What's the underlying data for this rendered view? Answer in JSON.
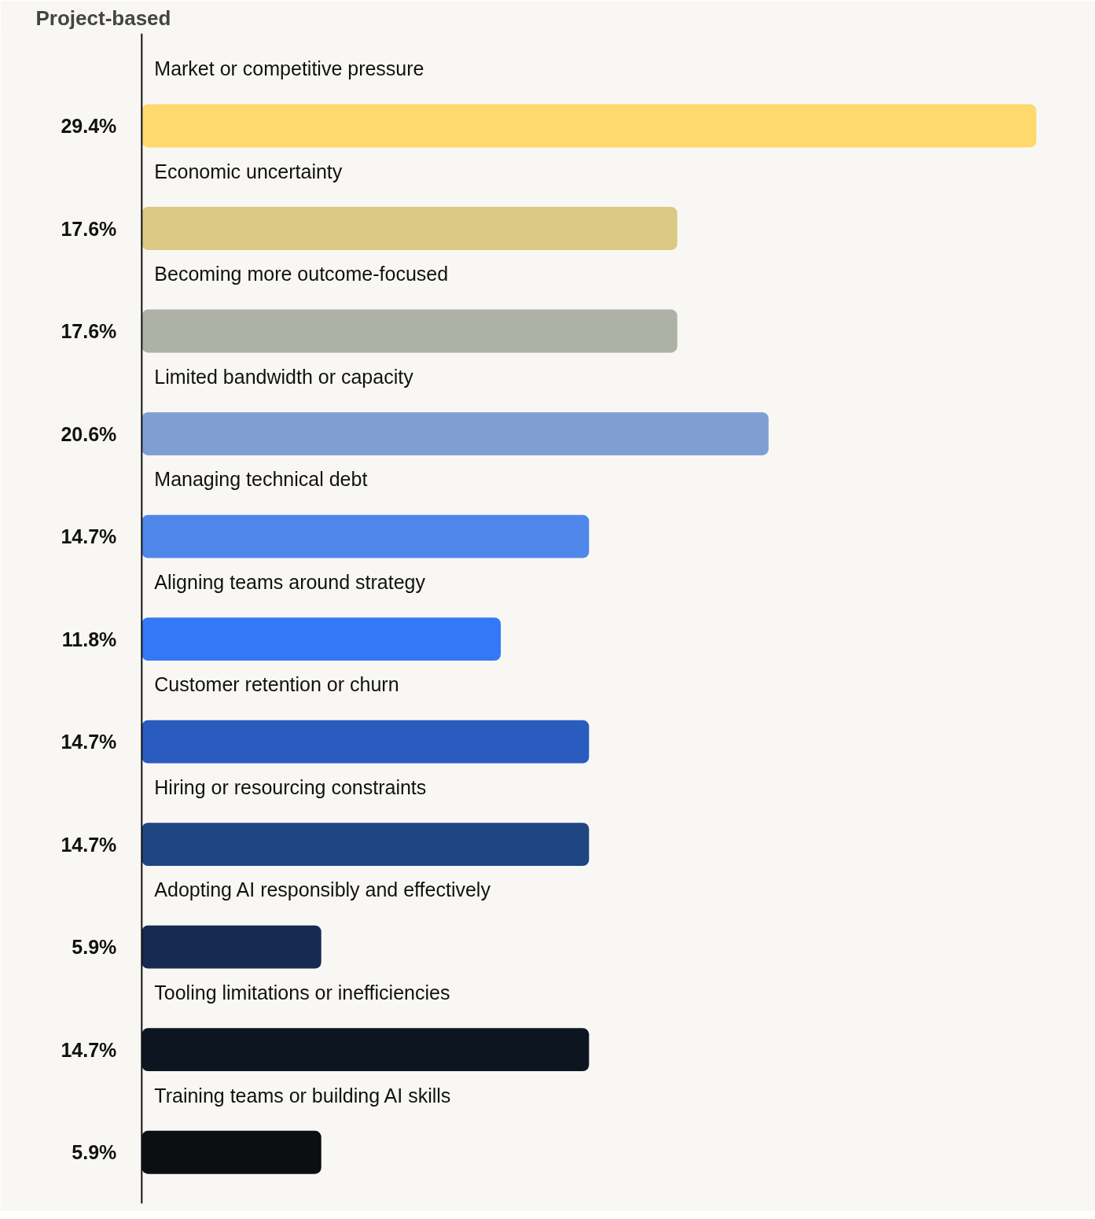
{
  "chart_data": {
    "type": "bar",
    "orientation": "horizontal",
    "title": "Project-based",
    "categories": [
      "Market or competitive pressure",
      "Economic uncertainty",
      "Becoming more outcome-focused",
      "Limited bandwidth or capacity",
      "Managing technical debt",
      "Aligning teams around strategy",
      "Customer retention or churn",
      "Hiring or resourcing constraints",
      "Adopting AI responsibly and effectively",
      "Tooling limitations or inefficiencies",
      "Training teams or building AI skills"
    ],
    "values": [
      29.4,
      17.6,
      17.6,
      20.6,
      14.7,
      11.8,
      14.7,
      14.7,
      5.9,
      14.7,
      5.9
    ],
    "value_labels": [
      "29.4%",
      "17.6%",
      "17.6%",
      "20.6%",
      "14.7%",
      "11.8%",
      "14.7%",
      "14.7%",
      "5.9%",
      "14.7%",
      "5.9%"
    ],
    "colors": [
      "#ffd96e",
      "#dcc983",
      "#aeb2a6",
      "#7f9fd2",
      "#4f86ea",
      "#3578f6",
      "#2a5cc0",
      "#1f4583",
      "#172b52",
      "#0d1620",
      "#0b0f12"
    ]
  }
}
